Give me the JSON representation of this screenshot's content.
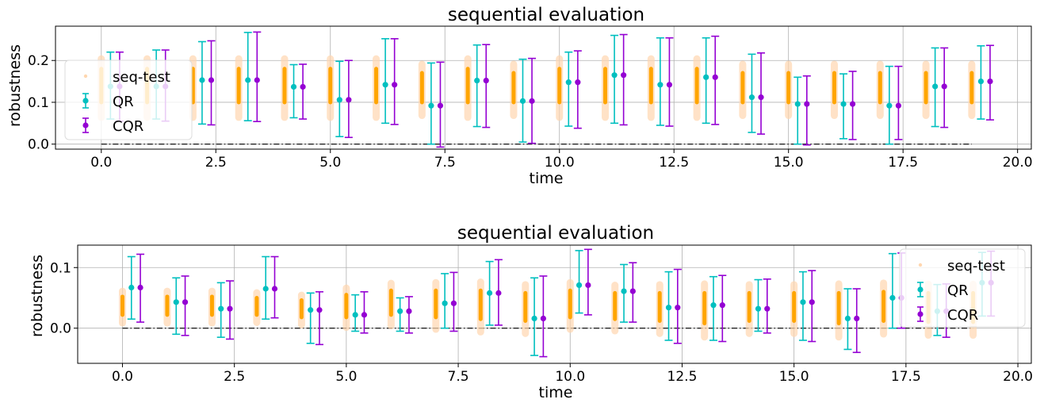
{
  "colors": {
    "seq_test": "#ffa500",
    "seq_test_faint": "#ffd7b0",
    "qr": "#00bfbf",
    "cqr": "#9400d3",
    "grid": "#b0b0b0",
    "zero_line": "#000000"
  },
  "chart_data": [
    {
      "type": "scatter",
      "title": "sequential evaluation",
      "xlabel": "time",
      "ylabel": "robustness",
      "xlim": [
        -1,
        20.3
      ],
      "ylim": [
        -0.012,
        0.282
      ],
      "xticks": [
        0.0,
        2.5,
        5.0,
        7.5,
        10.0,
        12.5,
        15.0,
        17.5,
        20.0
      ],
      "xtick_labels": [
        "0.0",
        "2.5",
        "5.0",
        "7.5",
        "10.0",
        "12.5",
        "15.0",
        "17.5",
        "20.0"
      ],
      "yticks": [
        0.0,
        0.1,
        0.2
      ],
      "ytick_labels": [
        "0.0",
        "0.1",
        "0.2"
      ],
      "grid": true,
      "legend_position": "left",
      "legend": [
        "seq-test",
        "QR",
        "CQR"
      ],
      "reference_line": {
        "y": 0.0,
        "x_start": 0,
        "x_end": 19
      },
      "series": [
        {
          "name": "seq-test",
          "kind": "spread",
          "x": [
            0,
            1,
            2,
            3,
            4,
            5,
            6,
            7,
            8,
            9,
            10,
            11,
            12,
            13,
            14,
            15,
            16,
            17,
            18,
            19
          ],
          "low": [
            0.1,
            0.1,
            0.1,
            0.1,
            0.1,
            0.1,
            0.1,
            0.1,
            0.1,
            0.1,
            0.1,
            0.1,
            0.1,
            0.1,
            0.1,
            0.1,
            0.1,
            0.1,
            0.1,
            0.1
          ],
          "high": [
            0.18,
            0.18,
            0.18,
            0.18,
            0.18,
            0.18,
            0.18,
            0.17,
            0.18,
            0.17,
            0.18,
            0.18,
            0.18,
            0.18,
            0.17,
            0.17,
            0.17,
            0.17,
            0.17,
            0.17
          ]
        },
        {
          "name": "QR",
          "kind": "errorbar",
          "x": [
            0.2,
            1.2,
            2.2,
            3.2,
            4.2,
            5.2,
            6.2,
            7.2,
            8.2,
            9.2,
            10.2,
            11.2,
            12.2,
            13.2,
            14.2,
            15.2,
            16.2,
            17.2,
            18.2,
            19.2
          ],
          "y": [
            0.138,
            0.138,
            0.153,
            0.153,
            0.137,
            0.106,
            0.142,
            0.092,
            0.152,
            0.103,
            0.148,
            0.165,
            0.142,
            0.16,
            0.112,
            0.096,
            0.096,
            0.092,
            0.138,
            0.15
          ],
          "low": [
            0.06,
            0.06,
            0.048,
            0.056,
            0.063,
            0.018,
            0.05,
            0.0,
            0.042,
            0.005,
            0.043,
            0.05,
            0.045,
            0.05,
            0.028,
            0.0,
            0.013,
            0.0,
            0.042,
            0.06
          ],
          "high": [
            0.22,
            0.225,
            0.245,
            0.267,
            0.19,
            0.198,
            0.252,
            0.194,
            0.237,
            0.203,
            0.22,
            0.26,
            0.254,
            0.254,
            0.215,
            0.16,
            0.168,
            0.186,
            0.23,
            0.235
          ]
        },
        {
          "name": "CQR",
          "kind": "errorbar",
          "x": [
            0.4,
            1.4,
            2.4,
            3.4,
            4.4,
            5.4,
            6.4,
            7.4,
            8.4,
            9.4,
            10.4,
            11.4,
            12.4,
            13.4,
            14.4,
            15.4,
            16.4,
            17.4,
            18.4,
            19.4
          ],
          "y": [
            0.138,
            0.138,
            0.153,
            0.153,
            0.137,
            0.106,
            0.142,
            0.092,
            0.152,
            0.103,
            0.148,
            0.165,
            0.142,
            0.16,
            0.112,
            0.096,
            0.096,
            0.092,
            0.138,
            0.15
          ],
          "low": [
            0.055,
            0.055,
            0.046,
            0.054,
            0.06,
            0.016,
            0.047,
            -0.007,
            0.04,
            0.002,
            0.038,
            0.046,
            0.043,
            0.047,
            0.024,
            -0.002,
            0.011,
            0.011,
            0.04,
            0.058
          ],
          "high": [
            0.22,
            0.225,
            0.247,
            0.268,
            0.191,
            0.2,
            0.252,
            0.196,
            0.238,
            0.205,
            0.223,
            0.262,
            0.254,
            0.258,
            0.218,
            0.163,
            0.174,
            0.186,
            0.23,
            0.236
          ]
        }
      ]
    },
    {
      "type": "scatter",
      "title": "sequential evaluation",
      "xlabel": "time",
      "ylabel": "robustness",
      "xlim": [
        -1,
        20.3
      ],
      "ylim": [
        -0.058,
        0.137
      ],
      "xticks": [
        0.0,
        2.5,
        5.0,
        7.5,
        10.0,
        12.5,
        15.0,
        17.5,
        20.0
      ],
      "xtick_labels": [
        "0.0",
        "2.5",
        "5.0",
        "7.5",
        "10.0",
        "12.5",
        "15.0",
        "17.5",
        "20.0"
      ],
      "yticks": [
        0.0,
        0.1
      ],
      "ytick_labels": [
        "0.0",
        "0.1"
      ],
      "grid": true,
      "legend_position": "right",
      "legend": [
        "seq-test",
        "QR",
        "CQR"
      ],
      "reference_line": {
        "y": 0.0,
        "x_start": 0,
        "x_end": 19
      },
      "series": [
        {
          "name": "seq-test",
          "kind": "spread",
          "x": [
            0,
            1,
            2,
            3,
            4,
            5,
            6,
            7,
            8,
            9,
            10,
            11,
            12,
            13,
            14,
            15,
            16,
            17,
            18,
            19
          ],
          "low": [
            0.022,
            0.022,
            0.022,
            0.022,
            0.018,
            0.018,
            0.022,
            0.018,
            0.015,
            0.012,
            0.018,
            0.015,
            0.012,
            0.008,
            0.012,
            0.012,
            0.008,
            0.012,
            0.01,
            0.01
          ],
          "high": [
            0.052,
            0.052,
            0.052,
            0.05,
            0.046,
            0.055,
            0.062,
            0.062,
            0.062,
            0.058,
            0.062,
            0.058,
            0.058,
            0.058,
            0.058,
            0.058,
            0.058,
            0.06,
            0.058,
            0.058
          ]
        },
        {
          "name": "QR",
          "kind": "errorbar",
          "x": [
            0.2,
            1.2,
            2.2,
            3.2,
            4.2,
            5.2,
            6.2,
            7.2,
            8.2,
            9.2,
            10.2,
            11.2,
            12.2,
            13.2,
            14.2,
            15.2,
            16.2,
            17.2,
            18.2,
            19.2
          ],
          "y": [
            0.067,
            0.043,
            0.032,
            0.065,
            0.03,
            0.022,
            0.028,
            0.041,
            0.058,
            0.016,
            0.071,
            0.061,
            0.034,
            0.038,
            0.032,
            0.043,
            0.016,
            0.05,
            0.028,
            0.075
          ],
          "low": [
            0.015,
            -0.01,
            -0.015,
            0.015,
            -0.025,
            -0.005,
            -0.005,
            0.0,
            0.005,
            -0.045,
            0.025,
            0.01,
            -0.02,
            -0.02,
            -0.005,
            -0.02,
            -0.035,
            0.0,
            -0.012,
            0.02
          ],
          "high": [
            0.118,
            0.083,
            0.075,
            0.118,
            0.058,
            0.055,
            0.05,
            0.09,
            0.11,
            0.083,
            0.128,
            0.105,
            0.093,
            0.085,
            0.08,
            0.093,
            0.065,
            0.123,
            0.072,
            0.125
          ]
        },
        {
          "name": "CQR",
          "kind": "errorbar",
          "x": [
            0.4,
            1.4,
            2.4,
            3.4,
            4.4,
            5.4,
            6.4,
            7.4,
            8.4,
            9.4,
            10.4,
            11.4,
            12.4,
            13.4,
            14.4,
            15.4,
            16.4,
            17.4,
            18.4,
            19.4
          ],
          "y": [
            0.067,
            0.043,
            0.032,
            0.065,
            0.03,
            0.022,
            0.028,
            0.041,
            0.058,
            0.016,
            0.071,
            0.061,
            0.034,
            0.038,
            0.032,
            0.043,
            0.016,
            0.05,
            0.028,
            0.075
          ],
          "low": [
            0.01,
            -0.012,
            -0.018,
            0.017,
            -0.027,
            -0.008,
            -0.008,
            -0.005,
            0.005,
            -0.047,
            0.022,
            0.01,
            -0.025,
            -0.022,
            -0.008,
            -0.022,
            -0.04,
            0.0,
            -0.015,
            0.02
          ],
          "high": [
            0.122,
            0.086,
            0.078,
            0.118,
            0.06,
            0.06,
            0.052,
            0.092,
            0.113,
            0.086,
            0.13,
            0.108,
            0.097,
            0.087,
            0.081,
            0.095,
            0.065,
            0.124,
            0.073,
            0.127
          ]
        }
      ]
    }
  ]
}
